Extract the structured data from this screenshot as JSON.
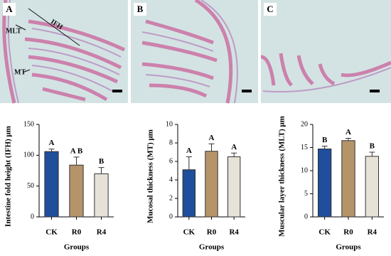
{
  "panels": [
    {
      "label": "A",
      "annotations": [
        "IFH",
        "MLT",
        "MT"
      ]
    },
    {
      "label": "B"
    },
    {
      "label": "C"
    }
  ],
  "chart_data": [
    {
      "type": "bar",
      "y_label": "Intestine fold height (IFH) μm",
      "x_label": "Groups",
      "categories": [
        "CK",
        "R0",
        "R4"
      ],
      "values": [
        106,
        84,
        70
      ],
      "errors": [
        4,
        13,
        10
      ],
      "letters": [
        "A",
        "A B",
        "B"
      ],
      "colors": [
        "#1f4e9c",
        "#b5946a",
        "#e6e2d8"
      ],
      "ylim": [
        0,
        150
      ],
      "yticks": [
        0,
        50,
        100,
        150
      ]
    },
    {
      "type": "bar",
      "y_label": "Mucosal thickness (MT) μm",
      "x_label": "Groups",
      "categories": [
        "CK",
        "R0",
        "R4"
      ],
      "values": [
        5.1,
        7.1,
        6.5
      ],
      "errors": [
        1.4,
        0.8,
        0.4
      ],
      "letters": [
        "A",
        "A",
        "A"
      ],
      "colors": [
        "#1f4e9c",
        "#b5946a",
        "#e6e2d8"
      ],
      "ylim": [
        0,
        10
      ],
      "yticks": [
        0,
        2,
        4,
        6,
        8,
        10
      ]
    },
    {
      "type": "bar",
      "y_label": "Muscular layer thickness (MLT) μm",
      "x_label": "Groups",
      "categories": [
        "CK",
        "R0",
        "R4"
      ],
      "values": [
        14.7,
        16.5,
        13.1
      ],
      "errors": [
        0.6,
        0.5,
        0.9
      ],
      "letters": [
        "B",
        "A",
        "B"
      ],
      "colors": [
        "#1f4e9c",
        "#b5946a",
        "#e6e2d8"
      ],
      "ylim": [
        0,
        20
      ],
      "yticks": [
        0,
        5,
        10,
        15,
        20
      ]
    }
  ]
}
